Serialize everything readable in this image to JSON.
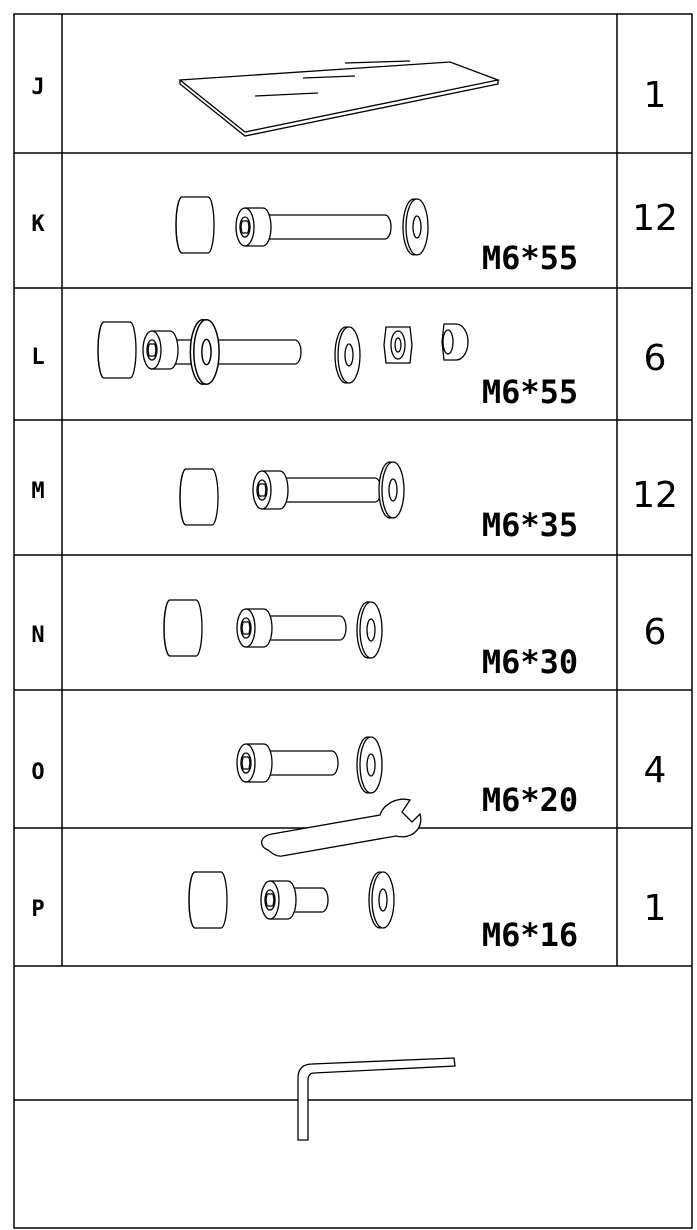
{
  "table": {
    "rows": [
      {
        "letter": "J",
        "quantity": 1
      },
      {
        "letter": "K",
        "size": "M6*55",
        "quantity": 12
      },
      {
        "letter": "L",
        "size": "M6*55",
        "quantity": 6
      },
      {
        "letter": "M",
        "size": "M6*35",
        "quantity": 12
      },
      {
        "letter": "N",
        "size": "M6*30",
        "quantity": 6
      },
      {
        "letter": "O",
        "size": "M6*20",
        "quantity": 4
      },
      {
        "letter": "P",
        "size": "M6*16",
        "quantity": 1
      }
    ]
  }
}
